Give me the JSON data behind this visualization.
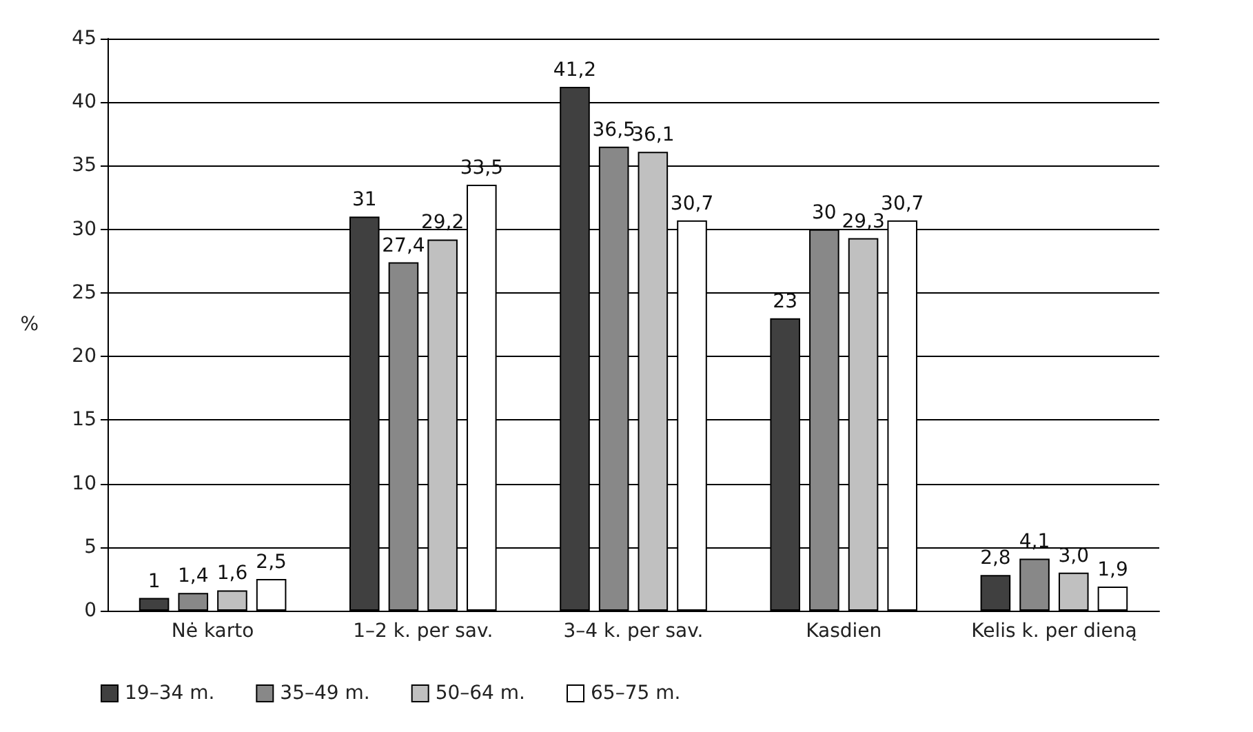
{
  "chart_data": {
    "type": "bar",
    "ylabel": "%",
    "categories": [
      "Nė karto",
      "1–2 k. per sav.",
      "3–4 k. per sav.",
      "Kasdien",
      "Kelis k. per dieną"
    ],
    "series": [
      {
        "name": "19–34 m.",
        "color": "#404040",
        "values": [
          1,
          31,
          41.2,
          23,
          2.8
        ],
        "value_labels": [
          "1",
          "31",
          "41,2",
          "23",
          "2,8"
        ]
      },
      {
        "name": "35–49 m.",
        "color": "#888888",
        "values": [
          1.4,
          27.4,
          36.5,
          30,
          4.1
        ],
        "value_labels": [
          "1,4",
          "27,4",
          "36,5",
          "30",
          "4,1"
        ]
      },
      {
        "name": "50–64 m.",
        "color": "#c0c0c0",
        "values": [
          1.6,
          29.2,
          36.1,
          29.3,
          3.0
        ],
        "value_labels": [
          "1,6",
          "29,2",
          "36,1",
          "29,3",
          "3,0"
        ]
      },
      {
        "name": "65–75 m.",
        "color": "#ffffff",
        "values": [
          2.5,
          33.5,
          30.7,
          30.7,
          1.9
        ],
        "value_labels": [
          "2,5",
          "33,5",
          "30,7",
          "30,7",
          "1,9"
        ]
      }
    ],
    "ylim": [
      0,
      45
    ],
    "yticks": [
      0,
      5,
      10,
      15,
      20,
      25,
      30,
      35,
      40,
      45
    ],
    "grid": "y",
    "legend": "bottom left"
  }
}
